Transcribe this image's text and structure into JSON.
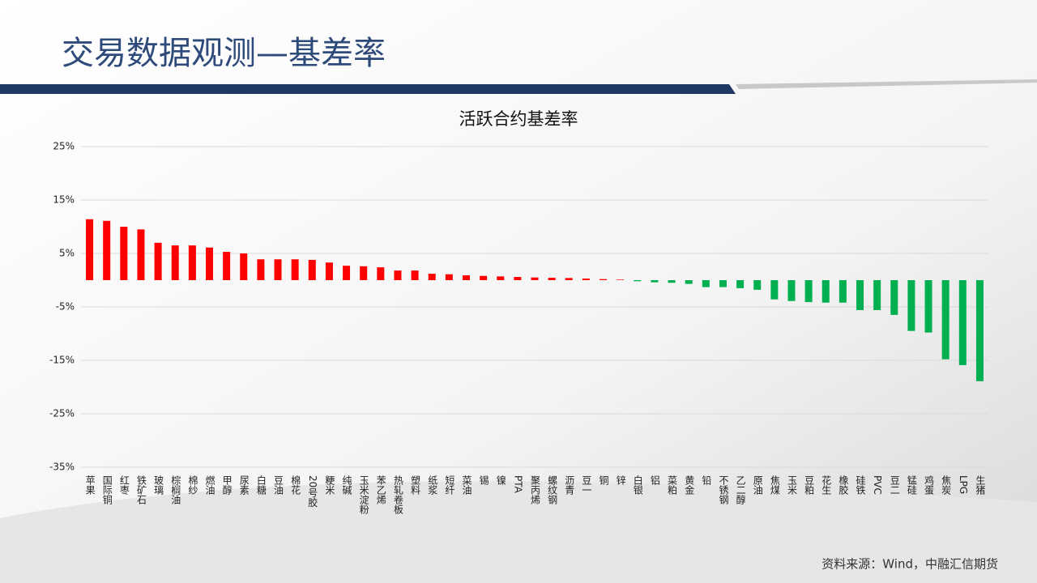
{
  "slide": {
    "title": "交易数据观测—基差率",
    "source": "资料来源：Wind，中融汇信期货"
  },
  "chart_data": {
    "type": "bar",
    "title": "活跃合约基差率",
    "categories": [
      "苹果",
      "国际铜",
      "红枣",
      "铁矿石",
      "玻璃",
      "棕榈油",
      "棉纱",
      "燃油",
      "甲醇",
      "尿素",
      "白糖",
      "豆油",
      "棉花",
      "20号胶",
      "粳米",
      "纯碱",
      "玉米淀粉",
      "苯乙烯",
      "热轧卷板",
      "塑料",
      "纸浆",
      "短纤",
      "菜油",
      "锡",
      "镍",
      "PTA",
      "聚丙烯",
      "螺纹钢",
      "沥青",
      "豆一",
      "铜",
      "锌",
      "白银",
      "铝",
      "菜粕",
      "黄金",
      "铅",
      "不锈钢",
      "乙二醇",
      "原油",
      "焦煤",
      "玉米",
      "豆粕",
      "花生",
      "橡胶",
      "硅铁",
      "PVC",
      "豆二",
      "锰硅",
      "鸡蛋",
      "焦炭",
      "LPG",
      "生猪"
    ],
    "values": [
      11.4,
      11.1,
      10.0,
      9.5,
      7.0,
      6.5,
      6.5,
      6.1,
      5.3,
      5.0,
      3.9,
      3.9,
      3.9,
      3.8,
      3.3,
      2.7,
      2.6,
      2.4,
      1.8,
      1.8,
      1.2,
      1.1,
      0.9,
      0.8,
      0.7,
      0.6,
      0.5,
      0.45,
      0.4,
      0.3,
      0.2,
      0.1,
      -0.2,
      -0.4,
      -0.5,
      -0.7,
      -1.3,
      -1.3,
      -1.5,
      -1.8,
      -3.6,
      -3.9,
      -4.1,
      -4.2,
      -4.2,
      -5.6,
      -5.6,
      -6.5,
      -9.5,
      -9.8,
      -14.8,
      -15.9,
      -18.9
    ],
    "positive_color": "#ff0000",
    "negative_color": "#00b050",
    "ylim": [
      -35,
      25
    ],
    "yticks": [
      {
        "value": -35,
        "label": "-35%"
      },
      {
        "value": -25,
        "label": "-25%"
      },
      {
        "value": -15,
        "label": "-15%"
      },
      {
        "value": -5,
        "label": "-5%"
      },
      {
        "value": 5,
        "label": "5%"
      },
      {
        "value": 15,
        "label": "15%"
      },
      {
        "value": 25,
        "label": "25%"
      }
    ],
    "grid": true
  }
}
